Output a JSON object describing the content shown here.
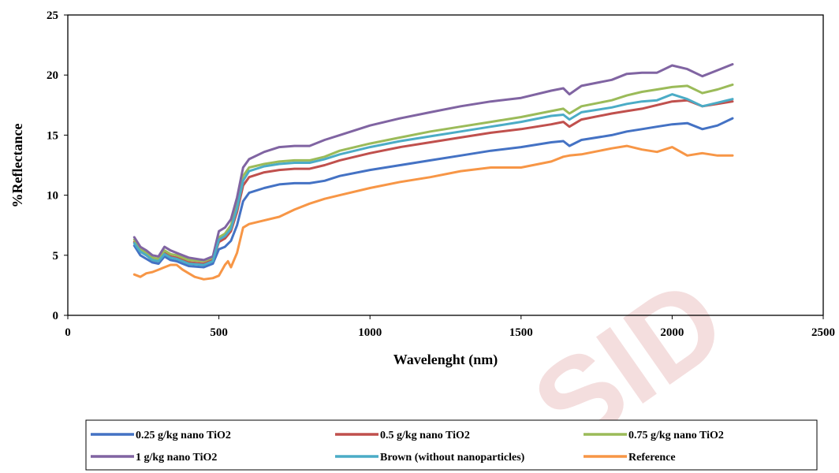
{
  "watermark": "SID",
  "chart_data": {
    "type": "line",
    "xlabel": "Wavelenght (nm)",
    "ylabel": "%Reflectance",
    "xlim": [
      0,
      2500
    ],
    "ylim": [
      0,
      25
    ],
    "x_ticks": [
      "0",
      "500",
      "1000",
      "1500",
      "2000",
      "2500"
    ],
    "y_ticks": [
      "0",
      "5",
      "10",
      "15",
      "20",
      "25"
    ],
    "grid": false,
    "legend_position": "bottom",
    "series": [
      {
        "name": "0.25 g/kg nano TiO2",
        "color": "#4472C4",
        "x": [
          220,
          240,
          260,
          280,
          300,
          320,
          340,
          360,
          380,
          400,
          450,
          480,
          500,
          520,
          540,
          560,
          580,
          600,
          650,
          700,
          750,
          800,
          850,
          900,
          1000,
          1100,
          1200,
          1300,
          1400,
          1500,
          1600,
          1640,
          1660,
          1700,
          1800,
          1850,
          1900,
          1950,
          2000,
          2050,
          2100,
          2150,
          2200
        ],
        "y": [
          5.8,
          5.0,
          4.7,
          4.4,
          4.3,
          4.9,
          4.6,
          4.5,
          4.3,
          4.1,
          4.0,
          4.3,
          5.5,
          5.7,
          6.2,
          7.5,
          9.5,
          10.2,
          10.6,
          10.9,
          11.0,
          11.0,
          11.2,
          11.6,
          12.1,
          12.5,
          12.9,
          13.3,
          13.7,
          14.0,
          14.4,
          14.5,
          14.1,
          14.6,
          15.0,
          15.3,
          15.5,
          15.7,
          15.9,
          16.0,
          15.5,
          15.8,
          16.4
        ]
      },
      {
        "name": "0.5 g/kg nano TiO2",
        "color": "#C0504D",
        "x": [
          220,
          240,
          260,
          280,
          300,
          320,
          340,
          360,
          380,
          400,
          450,
          480,
          500,
          520,
          540,
          560,
          580,
          600,
          650,
          700,
          750,
          800,
          850,
          900,
          1000,
          1100,
          1200,
          1300,
          1400,
          1500,
          1600,
          1640,
          1660,
          1700,
          1800,
          1850,
          1900,
          1950,
          2000,
          2050,
          2100,
          2150,
          2200
        ],
        "y": [
          6.1,
          5.3,
          5.0,
          4.6,
          4.5,
          5.2,
          4.9,
          4.8,
          4.6,
          4.4,
          4.3,
          4.6,
          6.1,
          6.4,
          7.0,
          8.6,
          10.8,
          11.5,
          11.9,
          12.1,
          12.2,
          12.2,
          12.5,
          12.9,
          13.5,
          14.0,
          14.4,
          14.8,
          15.2,
          15.5,
          15.9,
          16.1,
          15.7,
          16.3,
          16.8,
          17.0,
          17.2,
          17.5,
          17.8,
          17.9,
          17.4,
          17.6,
          17.8
        ]
      },
      {
        "name": "0.75 g/kg nano TiO2",
        "color": "#9BBB59",
        "x": [
          220,
          240,
          260,
          280,
          300,
          320,
          340,
          360,
          380,
          400,
          450,
          480,
          500,
          520,
          540,
          560,
          580,
          600,
          650,
          700,
          750,
          800,
          850,
          900,
          1000,
          1100,
          1200,
          1300,
          1400,
          1500,
          1600,
          1640,
          1660,
          1700,
          1800,
          1850,
          1900,
          1950,
          2000,
          2050,
          2100,
          2150,
          2200
        ],
        "y": [
          6.3,
          5.5,
          5.2,
          4.8,
          4.7,
          5.4,
          5.1,
          5.0,
          4.8,
          4.6,
          4.5,
          4.8,
          6.5,
          6.8,
          7.5,
          9.2,
          11.6,
          12.3,
          12.6,
          12.8,
          12.9,
          12.9,
          13.2,
          13.7,
          14.3,
          14.8,
          15.3,
          15.7,
          16.1,
          16.5,
          17.0,
          17.2,
          16.8,
          17.4,
          17.9,
          18.3,
          18.6,
          18.8,
          19.0,
          19.1,
          18.5,
          18.8,
          19.2
        ]
      },
      {
        "name": "1 g/kg nano TiO2",
        "color": "#8064A2",
        "x": [
          220,
          240,
          260,
          280,
          300,
          320,
          340,
          360,
          380,
          400,
          450,
          480,
          500,
          520,
          540,
          560,
          580,
          600,
          650,
          700,
          750,
          800,
          850,
          900,
          1000,
          1100,
          1200,
          1300,
          1400,
          1500,
          1600,
          1640,
          1660,
          1700,
          1800,
          1850,
          1900,
          1950,
          2000,
          2050,
          2100,
          2150,
          2200
        ],
        "y": [
          6.5,
          5.7,
          5.4,
          5.0,
          4.9,
          5.7,
          5.4,
          5.2,
          5.0,
          4.8,
          4.6,
          4.9,
          7.0,
          7.3,
          8.0,
          9.8,
          12.3,
          13.0,
          13.6,
          14.0,
          14.1,
          14.1,
          14.6,
          15.0,
          15.8,
          16.4,
          16.9,
          17.4,
          17.8,
          18.1,
          18.7,
          18.9,
          18.4,
          19.1,
          19.6,
          20.1,
          20.2,
          20.2,
          20.8,
          20.5,
          19.9,
          20.4,
          20.9
        ]
      },
      {
        "name": "Brown (without nanoparticles)",
        "color": "#4BACC6",
        "x": [
          220,
          240,
          260,
          280,
          300,
          320,
          340,
          360,
          380,
          400,
          450,
          480,
          500,
          520,
          540,
          560,
          580,
          600,
          650,
          700,
          750,
          800,
          850,
          900,
          1000,
          1100,
          1200,
          1300,
          1400,
          1500,
          1600,
          1640,
          1660,
          1700,
          1800,
          1850,
          1900,
          1950,
          2000,
          2050,
          2100,
          2150,
          2200
        ],
        "y": [
          6.0,
          5.3,
          5.0,
          4.6,
          4.5,
          5.1,
          4.8,
          4.7,
          4.5,
          4.3,
          4.2,
          4.5,
          6.3,
          6.6,
          7.2,
          8.9,
          11.2,
          12.0,
          12.4,
          12.6,
          12.7,
          12.7,
          13.0,
          13.4,
          14.0,
          14.5,
          14.9,
          15.3,
          15.7,
          16.1,
          16.6,
          16.7,
          16.3,
          16.9,
          17.3,
          17.6,
          17.8,
          17.9,
          18.4,
          18.0,
          17.4,
          17.7,
          18.0
        ]
      },
      {
        "name": "Reference",
        "color": "#F79646",
        "x": [
          220,
          240,
          260,
          280,
          300,
          320,
          340,
          360,
          380,
          400,
          420,
          450,
          480,
          500,
          520,
          530,
          540,
          560,
          580,
          600,
          650,
          700,
          750,
          800,
          850,
          900,
          1000,
          1100,
          1200,
          1300,
          1400,
          1500,
          1600,
          1640,
          1660,
          1700,
          1800,
          1850,
          1900,
          1950,
          2000,
          2050,
          2100,
          2150,
          2200
        ],
        "y": [
          3.4,
          3.2,
          3.5,
          3.6,
          3.8,
          4.0,
          4.2,
          4.2,
          3.8,
          3.5,
          3.2,
          3.0,
          3.1,
          3.3,
          4.2,
          4.5,
          4.0,
          5.2,
          7.3,
          7.6,
          7.9,
          8.2,
          8.8,
          9.3,
          9.7,
          10.0,
          10.6,
          11.1,
          11.5,
          12.0,
          12.3,
          12.3,
          12.8,
          13.2,
          13.3,
          13.4,
          13.9,
          14.1,
          13.8,
          13.6,
          14.0,
          13.3,
          13.5,
          13.3,
          13.3
        ]
      }
    ]
  }
}
